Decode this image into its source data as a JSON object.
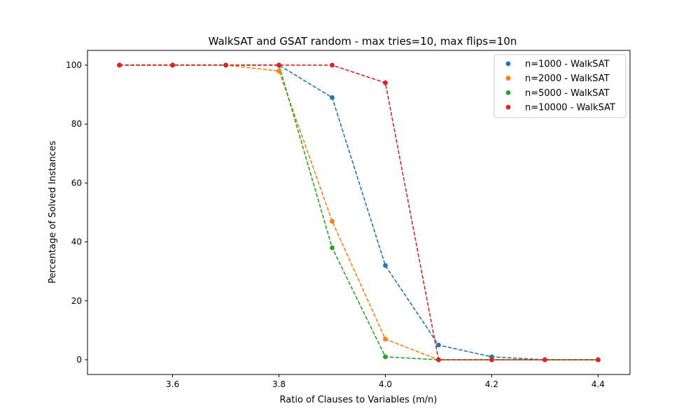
{
  "chart_data": {
    "type": "line",
    "title": "WalkSAT and GSAT random - max tries=10, max flips=10n",
    "xlabel": "Ratio of Clauses to Variables (m/n)",
    "ylabel": "Percentage of Solved Instances",
    "xlim": [
      3.44,
      4.46
    ],
    "ylim": [
      -5,
      105
    ],
    "xticks": [
      3.6,
      3.8,
      4.0,
      4.2,
      4.4
    ],
    "xtick_labels": [
      "3.6",
      "3.8",
      "4.0",
      "4.2",
      "4.4"
    ],
    "yticks": [
      0,
      20,
      40,
      60,
      80,
      100
    ],
    "ytick_labels": [
      "0",
      "20",
      "40",
      "60",
      "80",
      "100"
    ],
    "grid": false,
    "legend_position": "top-right",
    "line_style": "dashed",
    "x": [
      3.5,
      3.6,
      3.7,
      3.8,
      3.9,
      4.0,
      4.1,
      4.2,
      4.3,
      4.4
    ],
    "series": [
      {
        "name": "n=1000 - WalkSAT",
        "color": "#1f77b4",
        "values": [
          100,
          100,
          100,
          100,
          89,
          32,
          5,
          1,
          0,
          0
        ]
      },
      {
        "name": "n=2000 - WalkSAT",
        "color": "#ff7f0e",
        "values": [
          100,
          100,
          100,
          98,
          47,
          7,
          0,
          0,
          0,
          0
        ]
      },
      {
        "name": "n=5000 - WalkSAT",
        "color": "#2ca02c",
        "values": [
          100,
          100,
          100,
          100,
          38,
          1,
          0,
          0,
          0,
          0
        ]
      },
      {
        "name": "n=10000 - WalkSAT",
        "color": "#d62728",
        "values": [
          100,
          100,
          100,
          100,
          100,
          94,
          0,
          0,
          0,
          0
        ]
      }
    ]
  }
}
